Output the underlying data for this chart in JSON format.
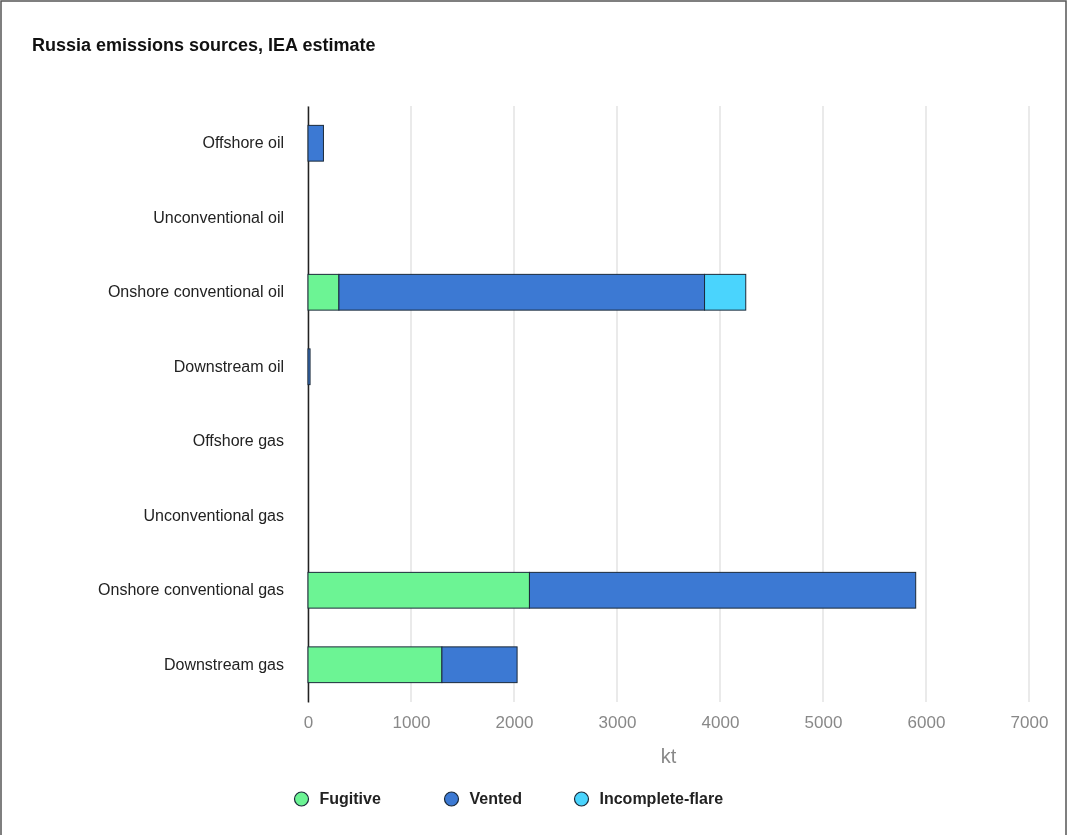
{
  "chart_data": {
    "type": "bar",
    "orientation": "horizontal",
    "stacked": true,
    "title": "Russia emissions sources, IEA estimate",
    "xlabel": "kt",
    "categories": [
      "Offshore oil",
      "Unconventional oil",
      "Onshore conventional oil",
      "Downstream oil",
      "Offshore gas",
      "Unconventional gas",
      "Onshore conventional gas",
      "Downstream gas"
    ],
    "series": [
      {
        "name": "Fugitive",
        "color": "#6cf494",
        "values": [
          0,
          0,
          300,
          0,
          0,
          0,
          2150,
          1300
        ]
      },
      {
        "name": "Vented",
        "color": "#3c79d3",
        "values": [
          150,
          0,
          3550,
          20,
          0,
          0,
          3750,
          730
        ]
      },
      {
        "name": "Incomplete-flare",
        "color": "#4ad4fd",
        "values": [
          0,
          0,
          400,
          0,
          0,
          0,
          0,
          0
        ]
      }
    ],
    "xlim": [
      0,
      7000
    ],
    "xticks": [
      0,
      1000,
      2000,
      3000,
      4000,
      5000,
      6000,
      7000
    ],
    "grid": "x",
    "legend": "bottom"
  }
}
